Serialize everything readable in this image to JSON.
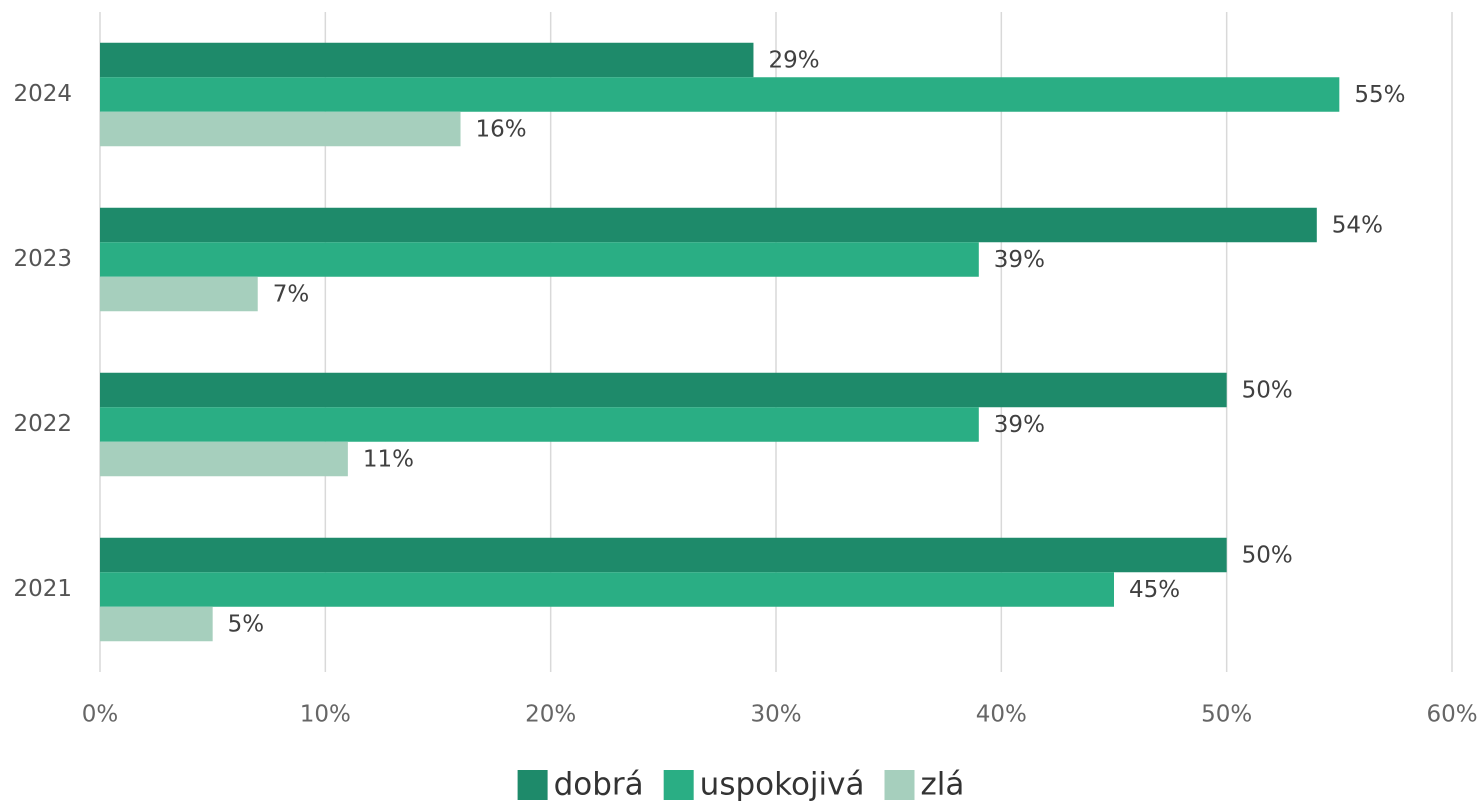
{
  "chart_data": {
    "type": "bar",
    "orientation": "horizontal",
    "categories": [
      "2021",
      "2022",
      "2023",
      "2024"
    ],
    "series": [
      {
        "name": "dobrá",
        "color": "#1e8a6a",
        "values": [
          50,
          50,
          54,
          29
        ],
        "value_labels": [
          "50%",
          "50%",
          "54%",
          "29%"
        ]
      },
      {
        "name": "uspokojivá",
        "color": "#2aae84",
        "values": [
          45,
          39,
          39,
          55
        ],
        "value_labels": [
          "45%",
          "39%",
          "39%",
          "55%"
        ]
      },
      {
        "name": "zlá",
        "color": "#a6cfbd",
        "values": [
          5,
          11,
          7,
          16
        ],
        "value_labels": [
          "5%",
          "11%",
          "7%",
          "16%"
        ]
      }
    ],
    "xlim": [
      0,
      60
    ],
    "xticks": [
      {
        "value": 0,
        "label": "0%"
      },
      {
        "value": 10,
        "label": "10%"
      },
      {
        "value": 20,
        "label": "20%"
      },
      {
        "value": 30,
        "label": "30%"
      },
      {
        "value": 40,
        "label": "40%"
      },
      {
        "value": 50,
        "label": "50%"
      },
      {
        "value": 60,
        "label": "60%"
      }
    ],
    "grid": true,
    "legend": "bottom"
  }
}
